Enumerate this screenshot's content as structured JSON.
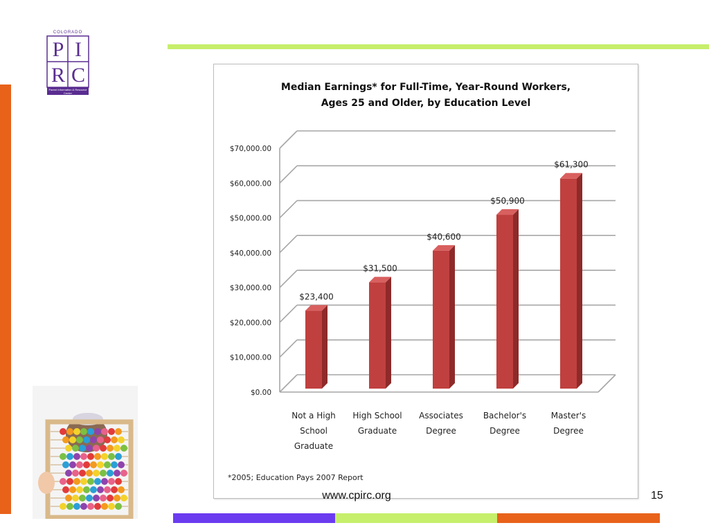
{
  "logo": {
    "top_text": "COLORADO",
    "letters": [
      "P",
      "I",
      "R",
      "C"
    ],
    "subtitle": "Parent Information & Resource Center",
    "color": "#5a2d91"
  },
  "colors": {
    "accent_green": "#c6ef6b",
    "accent_orange": "#e8621a",
    "accent_purple": "#6b3bf0",
    "bar_fill": "#c0403f",
    "bar_side": "#8e2a29",
    "bar_top": "#d8605f"
  },
  "footer": {
    "url": "www.cpirc.org",
    "page_number": "15"
  },
  "chart_data": {
    "type": "bar",
    "title_lines": [
      "Median Earnings* for Full-Time, Year-Round Workers,",
      "Ages 25 and Older, by Education Level"
    ],
    "categories": [
      [
        "Not a High",
        "School",
        "Graduate"
      ],
      [
        "High School",
        "Graduate"
      ],
      [
        "Associates",
        "Degree"
      ],
      [
        "Bachelor's",
        "Degree"
      ],
      [
        "Master's",
        "Degree"
      ]
    ],
    "values": [
      23400,
      31500,
      40600,
      50900,
      61300
    ],
    "data_labels": [
      "$23,400",
      "$31,500",
      "$40,600",
      "$50,900",
      "$61,300"
    ],
    "y_ticks": [
      "$0.00",
      "$10,000.00",
      "$20,000.00",
      "$30,000.00",
      "$40,000.00",
      "$50,000.00",
      "$60,000.00",
      "$70,000.00"
    ],
    "ylim": [
      0,
      70000
    ],
    "grid": true,
    "footnote": "*2005; Education Pays 2007 Report"
  }
}
